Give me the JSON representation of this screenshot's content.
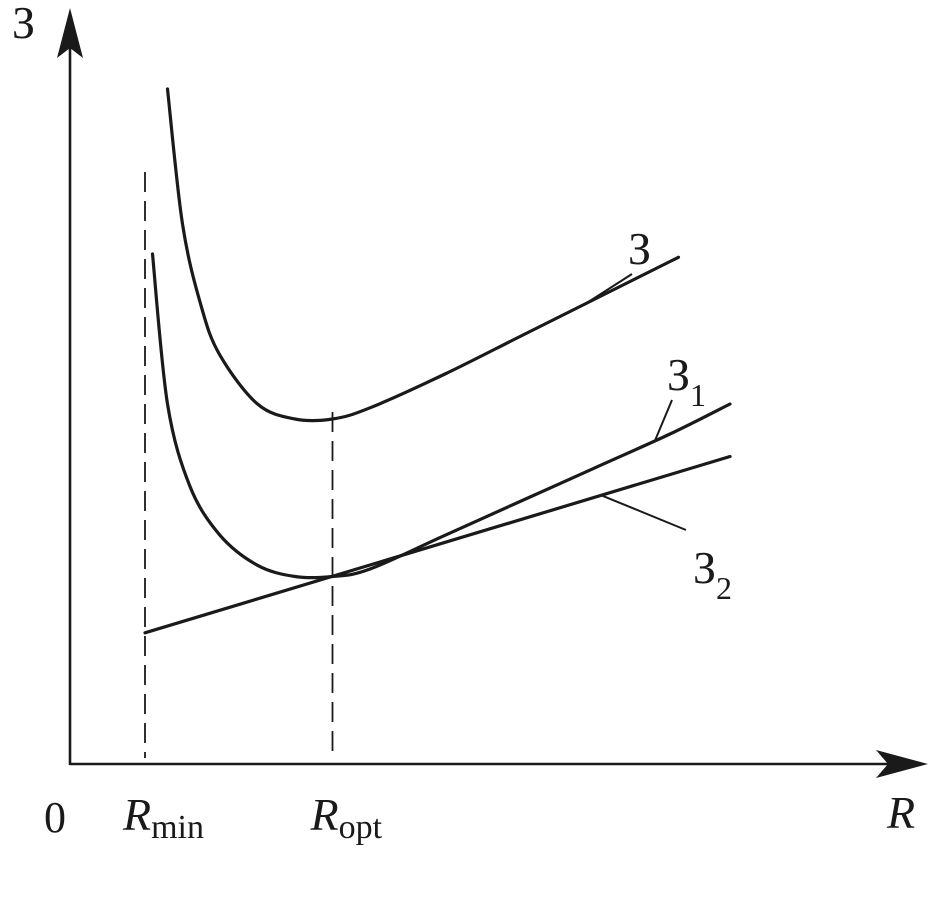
{
  "chart_data": {
    "type": "line",
    "axes": {
      "y_label": "З",
      "x_label": "R",
      "origin_label": "0",
      "x_ticks": [
        {
          "base": "R",
          "sub": "min",
          "x": 1.0
        },
        {
          "base": "R",
          "sub": "opt",
          "x": 3.5
        }
      ],
      "xlim": [
        0,
        11.2
      ],
      "ylim": [
        0,
        11
      ],
      "grid": false,
      "ticks_shown": false
    },
    "series": [
      {
        "name": "З",
        "label_base": "З",
        "label_sub": "",
        "x": [
          1.3,
          1.5,
          1.75,
          2.0,
          2.5,
          3.0,
          3.5,
          4.0,
          5.0,
          6.0,
          7.0,
          8.0,
          8.1
        ],
        "y": [
          9.0,
          7.2,
          6.1,
          5.45,
          4.8,
          4.6,
          4.6,
          4.75,
          5.2,
          5.7,
          6.2,
          6.7,
          6.75
        ]
      },
      {
        "name": "З1",
        "label_base": "З",
        "label_sub": "1",
        "x": [
          1.1,
          1.3,
          1.6,
          2.0,
          2.5,
          3.0,
          3.5,
          4.0,
          5.0,
          6.0,
          7.0,
          8.0,
          8.8
        ],
        "y": [
          6.8,
          4.8,
          3.7,
          3.05,
          2.65,
          2.5,
          2.5,
          2.6,
          3.05,
          3.5,
          3.95,
          4.4,
          4.8
        ]
      },
      {
        "name": "З2",
        "label_base": "З",
        "label_sub": "2",
        "x": [
          1.0,
          8.8
        ],
        "y": [
          1.75,
          4.1
        ]
      }
    ],
    "reference_lines": [
      {
        "type": "vertical",
        "x": 1.0,
        "style": "dashed"
      },
      {
        "type": "vertical",
        "x": 3.5,
        "style": "dashed"
      }
    ]
  }
}
